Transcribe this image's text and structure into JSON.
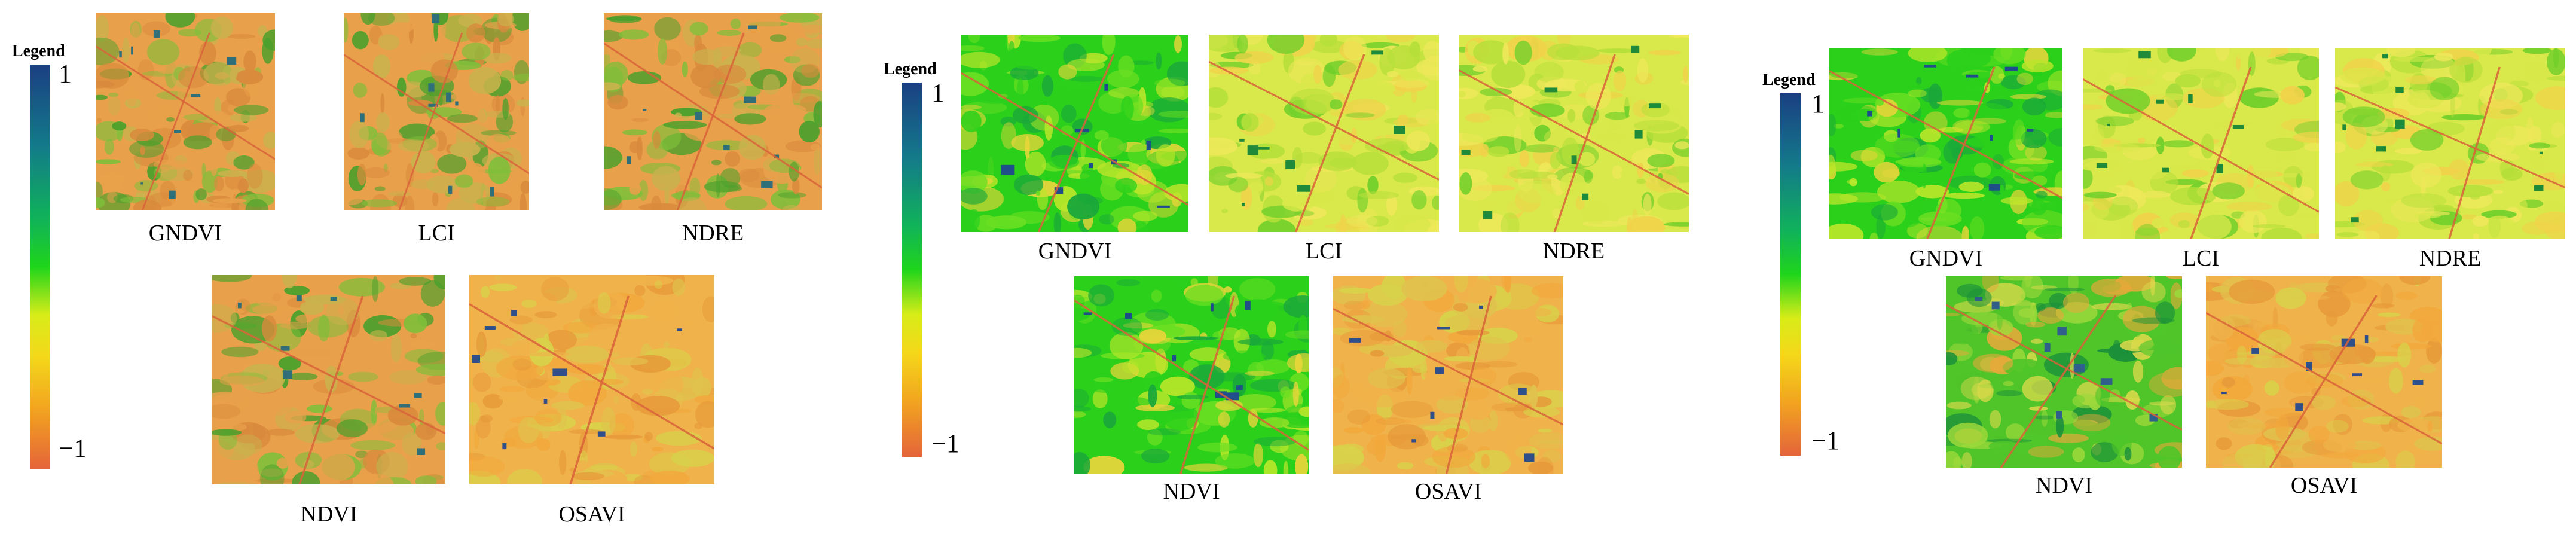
{
  "panels": [
    {
      "legend": {
        "title": "Legend",
        "max": "1",
        "min": "−1"
      },
      "images": [
        {
          "label": "GNDVI",
          "palette": "orange-dark",
          "seed": 11
        },
        {
          "label": "LCI",
          "palette": "orange-dark",
          "seed": 12
        },
        {
          "label": "NDRE",
          "palette": "orange-dark",
          "seed": 13
        },
        {
          "label": "NDVI",
          "palette": "orange-dark",
          "seed": 14
        },
        {
          "label": "OSAVI",
          "palette": "orange-warm",
          "seed": 15
        }
      ]
    },
    {
      "legend": {
        "title": "Legend",
        "max": "1",
        "min": "−1"
      },
      "images": [
        {
          "label": "GNDVI",
          "palette": "green-bright",
          "seed": 21
        },
        {
          "label": "LCI",
          "palette": "yellow-green",
          "seed": 22
        },
        {
          "label": "NDRE",
          "palette": "yellow-green",
          "seed": 23
        },
        {
          "label": "NDVI",
          "palette": "green-bright",
          "seed": 24
        },
        {
          "label": "OSAVI",
          "palette": "orange-warm",
          "seed": 25
        }
      ]
    },
    {
      "legend": {
        "title": "Legend",
        "max": "1",
        "min": "−1"
      },
      "images": [
        {
          "label": "GNDVI",
          "palette": "green-bright",
          "seed": 31
        },
        {
          "label": "LCI",
          "palette": "yellow-green",
          "seed": 32
        },
        {
          "label": "NDRE",
          "palette": "yellow-green",
          "seed": 33
        },
        {
          "label": "NDVI",
          "palette": "green-mix",
          "seed": 34
        },
        {
          "label": "OSAVI",
          "palette": "orange-warm",
          "seed": 35
        }
      ]
    }
  ],
  "palettes": {
    "orange-dark": [
      "#e8a04a",
      "#d98a3c",
      "#c9b24d",
      "#7fbf3a",
      "#4aa02c",
      "#2f6f7a"
    ],
    "orange-warm": [
      "#f0b24a",
      "#e79a3a",
      "#e0c24d",
      "#d8d24a",
      "#f2a83c",
      "#2f4f8a"
    ],
    "green-bright": [
      "#2bd01b",
      "#6adf22",
      "#b9e62a",
      "#1aa83a",
      "#e7d53a",
      "#1f4e8a"
    ],
    "yellow-green": [
      "#d9e84a",
      "#eee85a",
      "#b6df3a",
      "#f1d24a",
      "#6fcf2a",
      "#1f8a3a"
    ],
    "green-mix": [
      "#4fc52a",
      "#9bd83a",
      "#d9d94a",
      "#e7a83a",
      "#1b8f3a",
      "#2f5f8a"
    ]
  }
}
